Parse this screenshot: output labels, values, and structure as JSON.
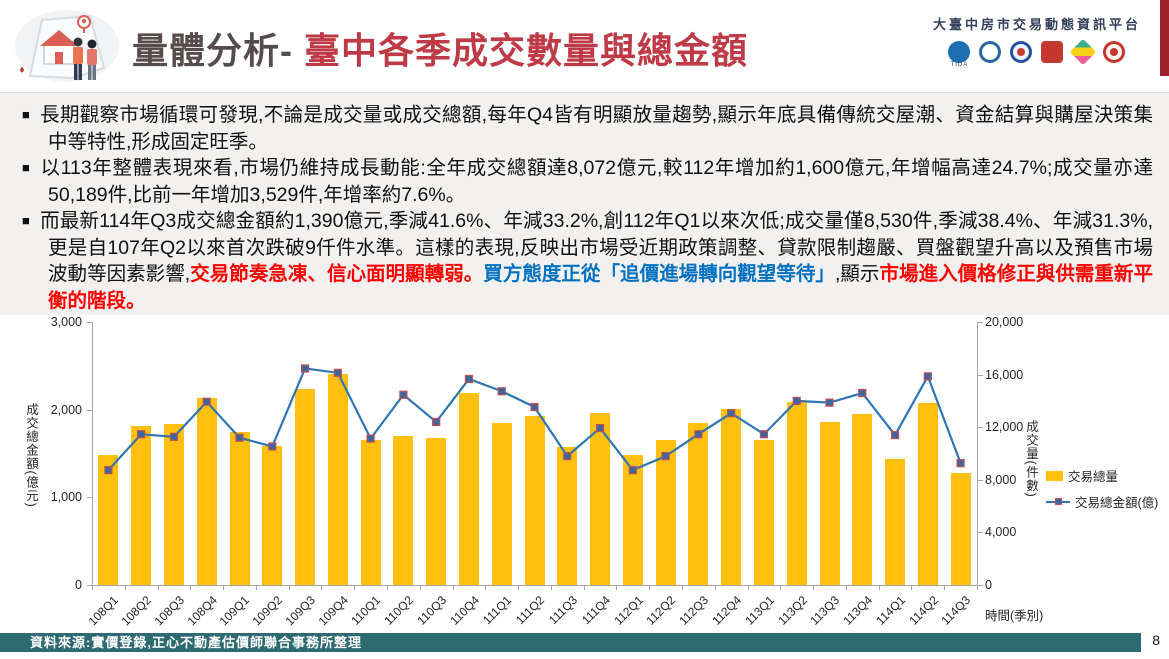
{
  "header": {
    "title_prefix": "量體分析- ",
    "title_main": "臺中各季成交數量與總金額",
    "platform_name": "大臺中房市交易動態資訊平台",
    "logos": [
      {
        "name": "tida-logo",
        "shape": "circle",
        "color": "#1E6FB0",
        "label": "TIDA"
      },
      {
        "name": "architects-association-logo",
        "shape": "ring",
        "color": "#FFFFFF",
        "ring": "#2B66A3"
      },
      {
        "name": "government-emblem-logo",
        "shape": "ring",
        "color": "#EFF4FB",
        "ring": "#27529E",
        "center": "#C43B31"
      },
      {
        "name": "red-p-logo",
        "shape": "square",
        "color": "#C4372E"
      },
      {
        "name": "diamond-logo",
        "shape": "diamond",
        "color": "#3FAE8E",
        "color2": "#F7D117",
        "color3": "#E8609A"
      },
      {
        "name": "appraiser-union-logo",
        "shape": "ring",
        "color": "#FDF3F2",
        "ring": "#C0392B",
        "center": "#C0392B"
      }
    ]
  },
  "bullet_marker": "■",
  "bullets": [
    {
      "segments": [
        {
          "text": "長期觀察市場循環可發現,不論是成交量或成交總額,每年Q4皆有明顯放量趨勢,顯示年底具備傳統交屋潮、資金結算與購屋決策集中等特性,形成固定旺季。",
          "style": "normal"
        }
      ]
    },
    {
      "segments": [
        {
          "text": "以113年整體表現來看,市場仍維持成長動能:全年成交總額達8,072億元,較112年增加約1,600億元,年增幅高達24.7%;成交量亦達50,189件,比前一年增加3,529件,年增率約7.6%。",
          "style": "normal"
        }
      ]
    },
    {
      "segments": [
        {
          "text": "而最新114年Q3成交總金額約1,390億元,季減41.6%、年減33.2%,創112年Q1以來次低;成交量僅8,530件,季減38.4%、年減31.3%,更是自107年Q2以來首次跌破9仟件水準。這樣的表現,反映出市場受近期政策調整、貸款限制趨嚴、買盤觀望升高以及預售市場波動等因素影響,",
          "style": "normal"
        },
        {
          "text": "交易節奏急凍、信心面明顯轉弱。",
          "style": "red"
        },
        {
          "text": "買方態度正從「追價進場轉向觀望等待」",
          "style": "blue"
        },
        {
          "text": ",顯示",
          "style": "normal"
        },
        {
          "text": "市場進入價格修正與供需重新平衡的階段。",
          "style": "red"
        }
      ]
    }
  ],
  "chart_data": {
    "type": "bar+line combo",
    "categories": [
      "108Q1",
      "108Q2",
      "108Q3",
      "108Q4",
      "109Q1",
      "109Q2",
      "109Q3",
      "109Q4",
      "110Q1",
      "110Q2",
      "110Q3",
      "110Q4",
      "111Q1",
      "111Q2",
      "111Q3",
      "111Q4",
      "112Q1",
      "112Q2",
      "112Q3",
      "112Q4",
      "113Q1",
      "113Q2",
      "113Q3",
      "113Q4",
      "114Q1",
      "114Q2",
      "114Q3"
    ],
    "series": [
      {
        "name": "交易總量",
        "type": "bar",
        "axis": "right",
        "color": "#FFC010",
        "values": [
          9900,
          12100,
          12250,
          14200,
          11600,
          10600,
          14900,
          16050,
          11000,
          11300,
          11200,
          14600,
          12300,
          12850,
          10500,
          13100,
          9900,
          11050,
          12300,
          13400,
          11000,
          13900,
          12400,
          13000,
          9550,
          13850,
          8530
        ]
      },
      {
        "name": "交易總金額(億)",
        "type": "line",
        "axis": "left",
        "color": "#2E75B6",
        "marker_fill": "#3B66A0",
        "marker_border": "#C0504D",
        "values": [
          1310,
          1720,
          1690,
          2090,
          1680,
          1580,
          2470,
          2420,
          1670,
          2170,
          1860,
          2350,
          2210,
          2030,
          1470,
          1790,
          1310,
          1470,
          1720,
          1960,
          1720,
          2100,
          2080,
          2190,
          1710,
          2380,
          1390
        ]
      }
    ],
    "left_axis": {
      "title": "成交總金額(億元)",
      "min": 0,
      "max": 3000,
      "ticks": [
        {
          "v": 0,
          "label": "0"
        },
        {
          "v": 1000,
          "label": "1,000"
        },
        {
          "v": 2000,
          "label": "2,000"
        },
        {
          "v": 3000,
          "label": "3,000"
        }
      ]
    },
    "right_axis": {
      "title": "成交量(件數)",
      "min": 0,
      "max": 20000,
      "ticks": [
        {
          "v": 0,
          "label": "0"
        },
        {
          "v": 4000,
          "label": "4,000"
        },
        {
          "v": 8000,
          "label": "8,000"
        },
        {
          "v": 12000,
          "label": "12,000"
        },
        {
          "v": 16000,
          "label": "16,000"
        },
        {
          "v": 20000,
          "label": "20,000"
        }
      ]
    },
    "xlabel": "時間(季別)",
    "legend_position": "right",
    "grid": false
  },
  "footer": {
    "source": "資料來源:實價登錄,正心不動產估價師聯合事務所整理",
    "page": "8"
  }
}
